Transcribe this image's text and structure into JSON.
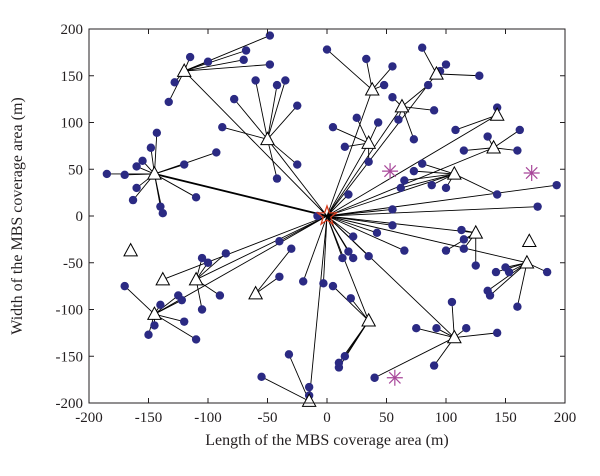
{
  "chart_data": {
    "type": "scatter",
    "title": "",
    "xlabel": "Length of the MBS coverage area (m)",
    "ylabel": "Width of the MBS coverage area (m)",
    "xlim": [
      -200,
      200
    ],
    "ylim": [
      -200,
      200
    ],
    "xticks": [
      "-200",
      "-150",
      "-100",
      "-50",
      "0",
      "50",
      "100",
      "150",
      "200"
    ],
    "yticks": [
      "200",
      "150",
      "100",
      "50",
      "0",
      "-50",
      "-100",
      "-150",
      "-200"
    ],
    "grid": false,
    "legend": "none",
    "colors": {
      "user": "#2b2a83",
      "sbs": "#000000",
      "mbs": "#d63a1a",
      "star": "#a8479a",
      "link": "#000000"
    },
    "mbs": {
      "x": 0,
      "y": 0
    },
    "sbs": [
      {
        "x": -120,
        "y": 155
      },
      {
        "x": -50,
        "y": 82
      },
      {
        "x": -145,
        "y": 45
      },
      {
        "x": -165,
        "y": -37
      },
      {
        "x": -138,
        "y": -68
      },
      {
        "x": -110,
        "y": -68
      },
      {
        "x": -145,
        "y": -105
      },
      {
        "x": -60,
        "y": -83
      },
      {
        "x": -15,
        "y": -198
      },
      {
        "x": 35,
        "y": -112
      },
      {
        "x": 38,
        "y": 135
      },
      {
        "x": 63,
        "y": 117
      },
      {
        "x": 92,
        "y": 152
      },
      {
        "x": 35,
        "y": 78
      },
      {
        "x": 143,
        "y": 108
      },
      {
        "x": 140,
        "y": 73
      },
      {
        "x": 107,
        "y": 45
      },
      {
        "x": 125,
        "y": -18
      },
      {
        "x": 170,
        "y": -27
      },
      {
        "x": 168,
        "y": -50
      },
      {
        "x": 107,
        "y": -130
      }
    ],
    "stars": [
      {
        "x": 53,
        "y": 48
      },
      {
        "x": 172,
        "y": 46
      },
      {
        "x": 57,
        "y": -173
      }
    ],
    "users": [
      {
        "x": -48,
        "y": 193,
        "s": 0
      },
      {
        "x": -68,
        "y": 177,
        "s": 0
      },
      {
        "x": -100,
        "y": 165,
        "s": 0
      },
      {
        "x": -115,
        "y": 170,
        "s": 0
      },
      {
        "x": -48,
        "y": 162,
        "s": 0
      },
      {
        "x": -70,
        "y": 167,
        "s": 0
      },
      {
        "x": -128,
        "y": 143,
        "s": 0
      },
      {
        "x": -133,
        "y": 122,
        "s": 0
      },
      {
        "x": -60,
        "y": 145,
        "s": 1
      },
      {
        "x": -35,
        "y": 145,
        "s": 1
      },
      {
        "x": -25,
        "y": 118,
        "s": 1
      },
      {
        "x": -42,
        "y": 140,
        "s": 1
      },
      {
        "x": -88,
        "y": 95,
        "s": 1
      },
      {
        "x": -78,
        "y": 125,
        "s": 1
      },
      {
        "x": -42,
        "y": 40,
        "s": 1
      },
      {
        "x": -25,
        "y": 55,
        "s": 1
      },
      {
        "x": -185,
        "y": 45,
        "s": 2
      },
      {
        "x": -170,
        "y": 44,
        "s": 2
      },
      {
        "x": -160,
        "y": 53,
        "s": 2
      },
      {
        "x": -160,
        "y": 30,
        "s": 2
      },
      {
        "x": -140,
        "y": 10,
        "s": 2
      },
      {
        "x": -163,
        "y": 17,
        "s": 2
      },
      {
        "x": -138,
        "y": 3,
        "s": 2
      },
      {
        "x": -110,
        "y": 20,
        "s": 2
      },
      {
        "x": -148,
        "y": 73,
        "s": 2
      },
      {
        "x": -155,
        "y": 59,
        "s": 2
      },
      {
        "x": -143,
        "y": 89,
        "s": 2
      },
      {
        "x": -120,
        "y": 55,
        "s": 2
      },
      {
        "x": -93,
        "y": 68,
        "s": 2
      },
      {
        "x": -105,
        "y": -45,
        "s": 5
      },
      {
        "x": -100,
        "y": -50,
        "s": 5
      },
      {
        "x": -85,
        "y": -40,
        "s": 5
      },
      {
        "x": -90,
        "y": -85,
        "s": 5
      },
      {
        "x": -105,
        "y": -100,
        "s": 5
      },
      {
        "x": -170,
        "y": -75,
        "s": 6
      },
      {
        "x": -140,
        "y": -95,
        "s": 6
      },
      {
        "x": -125,
        "y": -85,
        "s": 6
      },
      {
        "x": -122,
        "y": -90,
        "s": 6
      },
      {
        "x": -150,
        "y": -127,
        "s": 6
      },
      {
        "x": -145,
        "y": -117,
        "s": 6
      },
      {
        "x": -110,
        "y": -132,
        "s": 6
      },
      {
        "x": -120,
        "y": -113,
        "s": 6
      },
      {
        "x": -30,
        "y": -35,
        "s": 7
      },
      {
        "x": -40,
        "y": -65,
        "s": 7
      },
      {
        "x": -55,
        "y": -172,
        "s": 8
      },
      {
        "x": -32,
        "y": -148,
        "s": 8
      },
      {
        "x": -15,
        "y": -183,
        "s": 8
      },
      {
        "x": -15,
        "y": -192,
        "s": 8
      },
      {
        "x": 20,
        "y": -88,
        "s": 9
      },
      {
        "x": 10,
        "y": -162,
        "s": 9
      },
      {
        "x": 15,
        "y": -150,
        "s": 9
      },
      {
        "x": 10,
        "y": -157,
        "s": 9
      },
      {
        "x": 5,
        "y": -75,
        "s": 9
      },
      {
        "x": 0,
        "y": 178,
        "s": 10
      },
      {
        "x": 33,
        "y": 168,
        "s": 10
      },
      {
        "x": 55,
        "y": 160,
        "s": 10
      },
      {
        "x": 48,
        "y": 140,
        "s": 10
      },
      {
        "x": 55,
        "y": 127,
        "s": 11
      },
      {
        "x": 60,
        "y": 103,
        "s": 11
      },
      {
        "x": 85,
        "y": 140,
        "s": 11
      },
      {
        "x": 90,
        "y": 113,
        "s": 11
      },
      {
        "x": 73,
        "y": 82,
        "s": 11
      },
      {
        "x": 80,
        "y": 180,
        "s": 12
      },
      {
        "x": 95,
        "y": 155,
        "s": 12
      },
      {
        "x": 100,
        "y": 162,
        "s": 12
      },
      {
        "x": 128,
        "y": 150,
        "s": 12
      },
      {
        "x": 5,
        "y": 95,
        "s": 13
      },
      {
        "x": 25,
        "y": 105,
        "s": 13
      },
      {
        "x": 43,
        "y": 100,
        "s": 13
      },
      {
        "x": 15,
        "y": 74,
        "s": 13
      },
      {
        "x": 35,
        "y": 58,
        "s": 13
      },
      {
        "x": 143,
        "y": 116,
        "s": 14
      },
      {
        "x": 108,
        "y": 92,
        "s": 14
      },
      {
        "x": 135,
        "y": 85,
        "s": 15
      },
      {
        "x": 115,
        "y": 70,
        "s": 15
      },
      {
        "x": 162,
        "y": 92,
        "s": 15
      },
      {
        "x": 160,
        "y": 70,
        "s": 15
      },
      {
        "x": 80,
        "y": 56,
        "s": 16
      },
      {
        "x": 73,
        "y": 48,
        "s": 16
      },
      {
        "x": 65,
        "y": 38,
        "s": 16
      },
      {
        "x": 100,
        "y": 30,
        "s": 16
      },
      {
        "x": 62,
        "y": 30,
        "s": 16
      },
      {
        "x": 88,
        "y": 33,
        "s": 16
      },
      {
        "x": 143,
        "y": 23,
        "s": 16
      },
      {
        "x": 100,
        "y": -37,
        "s": 17
      },
      {
        "x": 113,
        "y": -15,
        "s": 17
      },
      {
        "x": 115,
        "y": -25,
        "s": 17
      },
      {
        "x": 125,
        "y": -53,
        "s": 17
      },
      {
        "x": 115,
        "y": -35,
        "s": 17
      },
      {
        "x": 142,
        "y": -60,
        "s": 19
      },
      {
        "x": 153,
        "y": -60,
        "s": 19
      },
      {
        "x": 185,
        "y": -60,
        "s": 19
      },
      {
        "x": 150,
        "y": -55,
        "s": 19
      },
      {
        "x": 160,
        "y": -97,
        "s": 19
      },
      {
        "x": 135,
        "y": -80,
        "s": 19
      },
      {
        "x": 137,
        "y": -85,
        "s": 19
      },
      {
        "x": 75,
        "y": -120,
        "s": 20
      },
      {
        "x": 92,
        "y": -120,
        "s": 20
      },
      {
        "x": 105,
        "y": -92,
        "s": 20
      },
      {
        "x": 90,
        "y": -160,
        "s": 20
      },
      {
        "x": 143,
        "y": -125,
        "s": 20
      },
      {
        "x": 117,
        "y": -120,
        "s": 20
      },
      {
        "x": 40,
        "y": -173,
        "s": 20
      },
      {
        "x": -40,
        "y": -27,
        "s": null
      },
      {
        "x": -20,
        "y": -70,
        "s": null
      },
      {
        "x": -3,
        "y": -72,
        "s": null
      },
      {
        "x": 18,
        "y": -38,
        "s": null
      },
      {
        "x": 13,
        "y": -45,
        "s": null
      },
      {
        "x": 22,
        "y": -45,
        "s": null
      },
      {
        "x": 35,
        "y": -43,
        "s": null
      },
      {
        "x": 42,
        "y": -18,
        "s": null
      },
      {
        "x": 65,
        "y": -37,
        "s": null
      },
      {
        "x": 55,
        "y": -10,
        "s": null
      },
      {
        "x": 55,
        "y": 7,
        "s": null
      },
      {
        "x": 18,
        "y": 23,
        "s": null
      },
      {
        "x": 22,
        "y": -22,
        "s": null
      },
      {
        "x": 177,
        "y": 10,
        "s": null
      },
      {
        "x": 193,
        "y": 33,
        "s": null
      },
      {
        "x": -8,
        "y": 0,
        "s": null
      }
    ]
  }
}
